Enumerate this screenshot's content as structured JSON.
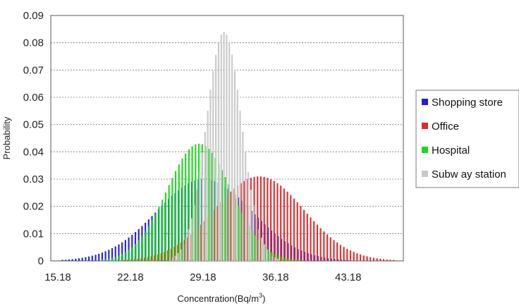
{
  "chart_data": {
    "type": "bar",
    "title": "",
    "xlabel": "Concentration(Bq/m",
    "xlabel_sup": "3",
    "xlabel_tail": ")",
    "ylabel": "Probability",
    "xlim": [
      14.5,
      48.5
    ],
    "ylim": [
      0,
      0.09
    ],
    "x_ticks": [
      15.18,
      22.18,
      29.18,
      36.18,
      43.18
    ],
    "x_tick_labels": [
      "15.18",
      "22.18",
      "29.18",
      "36.18",
      "43.18"
    ],
    "y_ticks": [
      0,
      0.01,
      0.02,
      0.03,
      0.04,
      0.05,
      0.06,
      0.07,
      0.08,
      0.09
    ],
    "y_tick_labels": [
      "0",
      "0.01",
      "0.02",
      "0.03",
      "0.04",
      "0.05",
      "0.06",
      "0.07",
      "0.08",
      "0.09"
    ],
    "grid": "horizontal dashed",
    "legend_position": "right",
    "series": [
      {
        "name": "Shopping store",
        "color": "#1f1fd6",
        "mean": 29.3,
        "sd": 4.6,
        "peak": 0.03,
        "x_start": 15.3,
        "x_end": 47.3,
        "step": 0.32
      },
      {
        "name": "Office",
        "color": "#e02828",
        "mean": 34.6,
        "sd": 4.3,
        "peak": 0.031,
        "x_start": 19.4,
        "x_end": 47.8,
        "step": 0.32
      },
      {
        "name": "Hospital",
        "color": "#18d818",
        "mean": 28.8,
        "sd": 3.1,
        "peak": 0.043,
        "x_start": 19.5,
        "x_end": 38.5,
        "step": 0.32
      },
      {
        "name": "Subw ay station",
        "color": "#c8c8c8",
        "mean": 31.2,
        "sd": 1.7,
        "peak": 0.084,
        "x_start": 26.0,
        "x_end": 36.6,
        "step": 0.26
      }
    ]
  }
}
